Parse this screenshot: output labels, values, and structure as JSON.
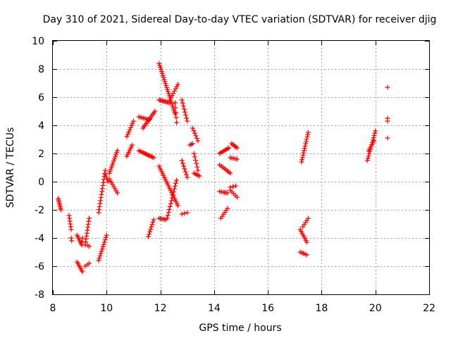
{
  "chart_data": {
    "type": "scatter",
    "title": "Day 310 of 2021, Sidereal Day-to-day VTEC variation (SDTVAR) for receiver djig",
    "xlabel": "GPS time / hours",
    "ylabel": "SDTVAR / TECUs",
    "xlim": [
      8,
      22
    ],
    "ylim": [
      -8,
      10
    ],
    "xticks": [
      "8",
      "10",
      "12",
      "14",
      "16",
      "18",
      "20",
      "22"
    ],
    "yticks": [
      "-8",
      "-6",
      "-4",
      "-2",
      "0",
      "2",
      "4",
      "6",
      "8",
      "10"
    ],
    "grid": true,
    "marker": "+",
    "color": "#ff0000",
    "series": [
      {
        "name": "SDTVAR",
        "segments": [
          {
            "x0": 8.2,
            "y0": -1.2,
            "x1": 8.3,
            "y1": -2.0,
            "n": 8
          },
          {
            "x0": 8.6,
            "y0": -2.4,
            "x1": 8.68,
            "y1": -3.4,
            "n": 6
          },
          {
            "x0": 8.68,
            "y0": -4.0,
            "x1": 8.7,
            "y1": -4.2,
            "n": 2
          },
          {
            "x0": 8.9,
            "y0": -3.8,
            "x1": 9.05,
            "y1": -4.4,
            "n": 6
          },
          {
            "x0": 8.9,
            "y0": -5.7,
            "x1": 9.1,
            "y1": -6.4,
            "n": 7
          },
          {
            "x0": 9.1,
            "y0": -4.0,
            "x1": 9.08,
            "y1": -4.5,
            "n": 3
          },
          {
            "x0": 9.2,
            "y0": -4.5,
            "x1": 9.35,
            "y1": -2.6,
            "n": 10
          },
          {
            "x0": 9.2,
            "y0": -6.0,
            "x1": 9.35,
            "y1": -5.8,
            "n": 3
          },
          {
            "x0": 9.28,
            "y0": -4.5,
            "x1": 9.35,
            "y1": -4.6,
            "n": 2
          },
          {
            "x0": 9.7,
            "y0": -5.6,
            "x1": 10.0,
            "y1": -3.8,
            "n": 12
          },
          {
            "x0": 9.7,
            "y0": -2.2,
            "x1": 9.95,
            "y1": 0.8,
            "n": 15
          },
          {
            "x0": 9.95,
            "y0": 0.5,
            "x1": 10.05,
            "y1": 0.0,
            "n": 4
          },
          {
            "x0": 10.1,
            "y0": 0.6,
            "x1": 10.4,
            "y1": 2.2,
            "n": 12
          },
          {
            "x0": 10.1,
            "y0": 0.2,
            "x1": 10.4,
            "y1": -0.8,
            "n": 8
          },
          {
            "x0": 10.75,
            "y0": 1.8,
            "x1": 10.95,
            "y1": 2.6,
            "n": 7
          },
          {
            "x0": 10.75,
            "y0": 3.2,
            "x1": 11.0,
            "y1": 4.3,
            "n": 8
          },
          {
            "x0": 11.2,
            "y0": 2.2,
            "x1": 11.75,
            "y1": 1.7,
            "n": 12
          },
          {
            "x0": 11.2,
            "y0": 4.6,
            "x1": 11.6,
            "y1": 4.4,
            "n": 8
          },
          {
            "x0": 11.35,
            "y0": 3.8,
            "x1": 11.8,
            "y1": 5.0,
            "n": 12
          },
          {
            "x0": 11.55,
            "y0": -3.9,
            "x1": 11.75,
            "y1": -2.7,
            "n": 8
          },
          {
            "x0": 11.95,
            "y0": 8.4,
            "x1": 12.55,
            "y1": 4.8,
            "n": 26
          },
          {
            "x0": 11.95,
            "y0": 5.8,
            "x1": 12.35,
            "y1": 5.6,
            "n": 10
          },
          {
            "x0": 12.35,
            "y0": 5.8,
            "x1": 12.65,
            "y1": 6.9,
            "n": 8
          },
          {
            "x0": 12.55,
            "y0": 5.6,
            "x1": 12.6,
            "y1": 4.2,
            "n": 5
          },
          {
            "x0": 11.95,
            "y0": 1.1,
            "x1": 12.65,
            "y1": -1.7,
            "n": 22
          },
          {
            "x0": 11.95,
            "y0": -2.6,
            "x1": 12.2,
            "y1": -2.7,
            "n": 6
          },
          {
            "x0": 12.25,
            "y0": -2.6,
            "x1": 12.6,
            "y1": 0.1,
            "n": 14
          },
          {
            "x0": 12.8,
            "y0": 5.8,
            "x1": 13.0,
            "y1": 4.3,
            "n": 8
          },
          {
            "x0": 12.8,
            "y0": 1.5,
            "x1": 13.0,
            "y1": 0.3,
            "n": 7
          },
          {
            "x0": 12.8,
            "y0": -2.3,
            "x1": 13.0,
            "y1": -2.2,
            "n": 3
          },
          {
            "x0": 13.1,
            "y0": 2.6,
            "x1": 13.2,
            "y1": 2.7,
            "n": 3
          },
          {
            "x0": 13.2,
            "y0": 3.8,
            "x1": 13.4,
            "y1": 2.9,
            "n": 6
          },
          {
            "x0": 13.25,
            "y0": 2.0,
            "x1": 13.4,
            "y1": 0.8,
            "n": 6
          },
          {
            "x0": 13.25,
            "y0": 0.6,
            "x1": 13.45,
            "y1": 0.4,
            "n": 5
          },
          {
            "x0": 14.2,
            "y0": 2.0,
            "x1": 14.55,
            "y1": 2.4,
            "n": 8
          },
          {
            "x0": 14.2,
            "y0": 1.2,
            "x1": 14.6,
            "y1": 0.6,
            "n": 8
          },
          {
            "x0": 14.2,
            "y0": -0.7,
            "x1": 14.5,
            "y1": -0.8,
            "n": 6
          },
          {
            "x0": 14.25,
            "y0": -2.6,
            "x1": 14.5,
            "y1": -1.9,
            "n": 6
          },
          {
            "x0": 14.6,
            "y0": 1.7,
            "x1": 14.85,
            "y1": 1.6,
            "n": 5
          },
          {
            "x0": 14.65,
            "y0": 2.7,
            "x1": 14.85,
            "y1": 2.4,
            "n": 5
          },
          {
            "x0": 14.6,
            "y0": -0.6,
            "x1": 14.85,
            "y1": -1.1,
            "n": 5
          },
          {
            "x0": 14.6,
            "y0": -0.4,
            "x1": 14.8,
            "y1": -0.3,
            "n": 3
          },
          {
            "x0": 17.25,
            "y0": 1.4,
            "x1": 17.5,
            "y1": 3.5,
            "n": 14
          },
          {
            "x0": 17.2,
            "y0": -3.4,
            "x1": 17.45,
            "y1": -4.3,
            "n": 8
          },
          {
            "x0": 17.3,
            "y0": -3.2,
            "x1": 17.5,
            "y1": -2.6,
            "n": 5
          },
          {
            "x0": 17.2,
            "y0": -5.0,
            "x1": 17.45,
            "y1": -5.2,
            "n": 5
          },
          {
            "x0": 19.7,
            "y0": 1.5,
            "x1": 20.0,
            "y1": 3.6,
            "n": 14
          },
          {
            "x0": 19.75,
            "y0": 2.2,
            "x1": 19.95,
            "y1": 2.9,
            "n": 6
          },
          {
            "x0": 20.45,
            "y0": 6.7,
            "x1": 20.45,
            "y1": 6.7,
            "n": 1
          },
          {
            "x0": 20.45,
            "y0": 4.5,
            "x1": 20.45,
            "y1": 4.3,
            "n": 2
          },
          {
            "x0": 20.45,
            "y0": 3.1,
            "x1": 20.45,
            "y1": 3.1,
            "n": 1
          }
        ]
      }
    ]
  }
}
